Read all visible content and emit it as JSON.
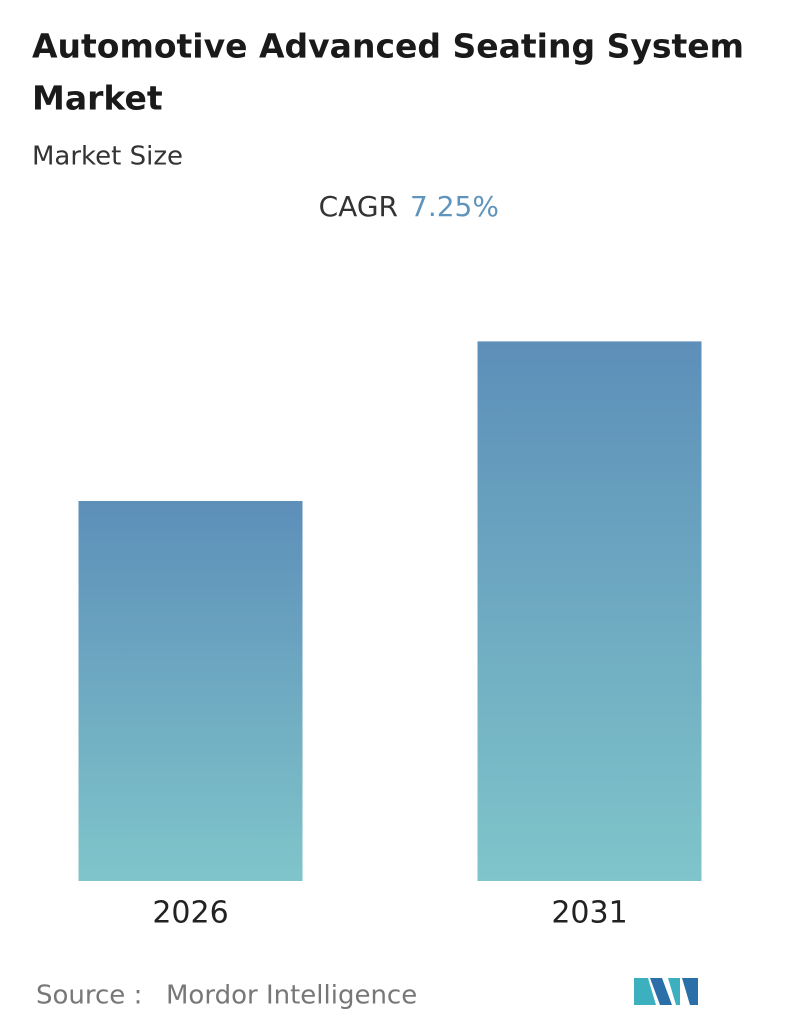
{
  "chart_data": {
    "type": "bar",
    "title": "Automotive Advanced Seating System Market",
    "subtitle": "Market Size",
    "cagr_label": "CAGR",
    "cagr_value": "7.25%",
    "categories": [
      "2026",
      "2031"
    ],
    "values": [
      100,
      142
    ],
    "ylim": [
      0,
      150
    ],
    "color_top": "#5d8fb9",
    "color_bottom": "#7fc5ca",
    "source_label": "Source :",
    "source": "Mordor Intelligence"
  }
}
